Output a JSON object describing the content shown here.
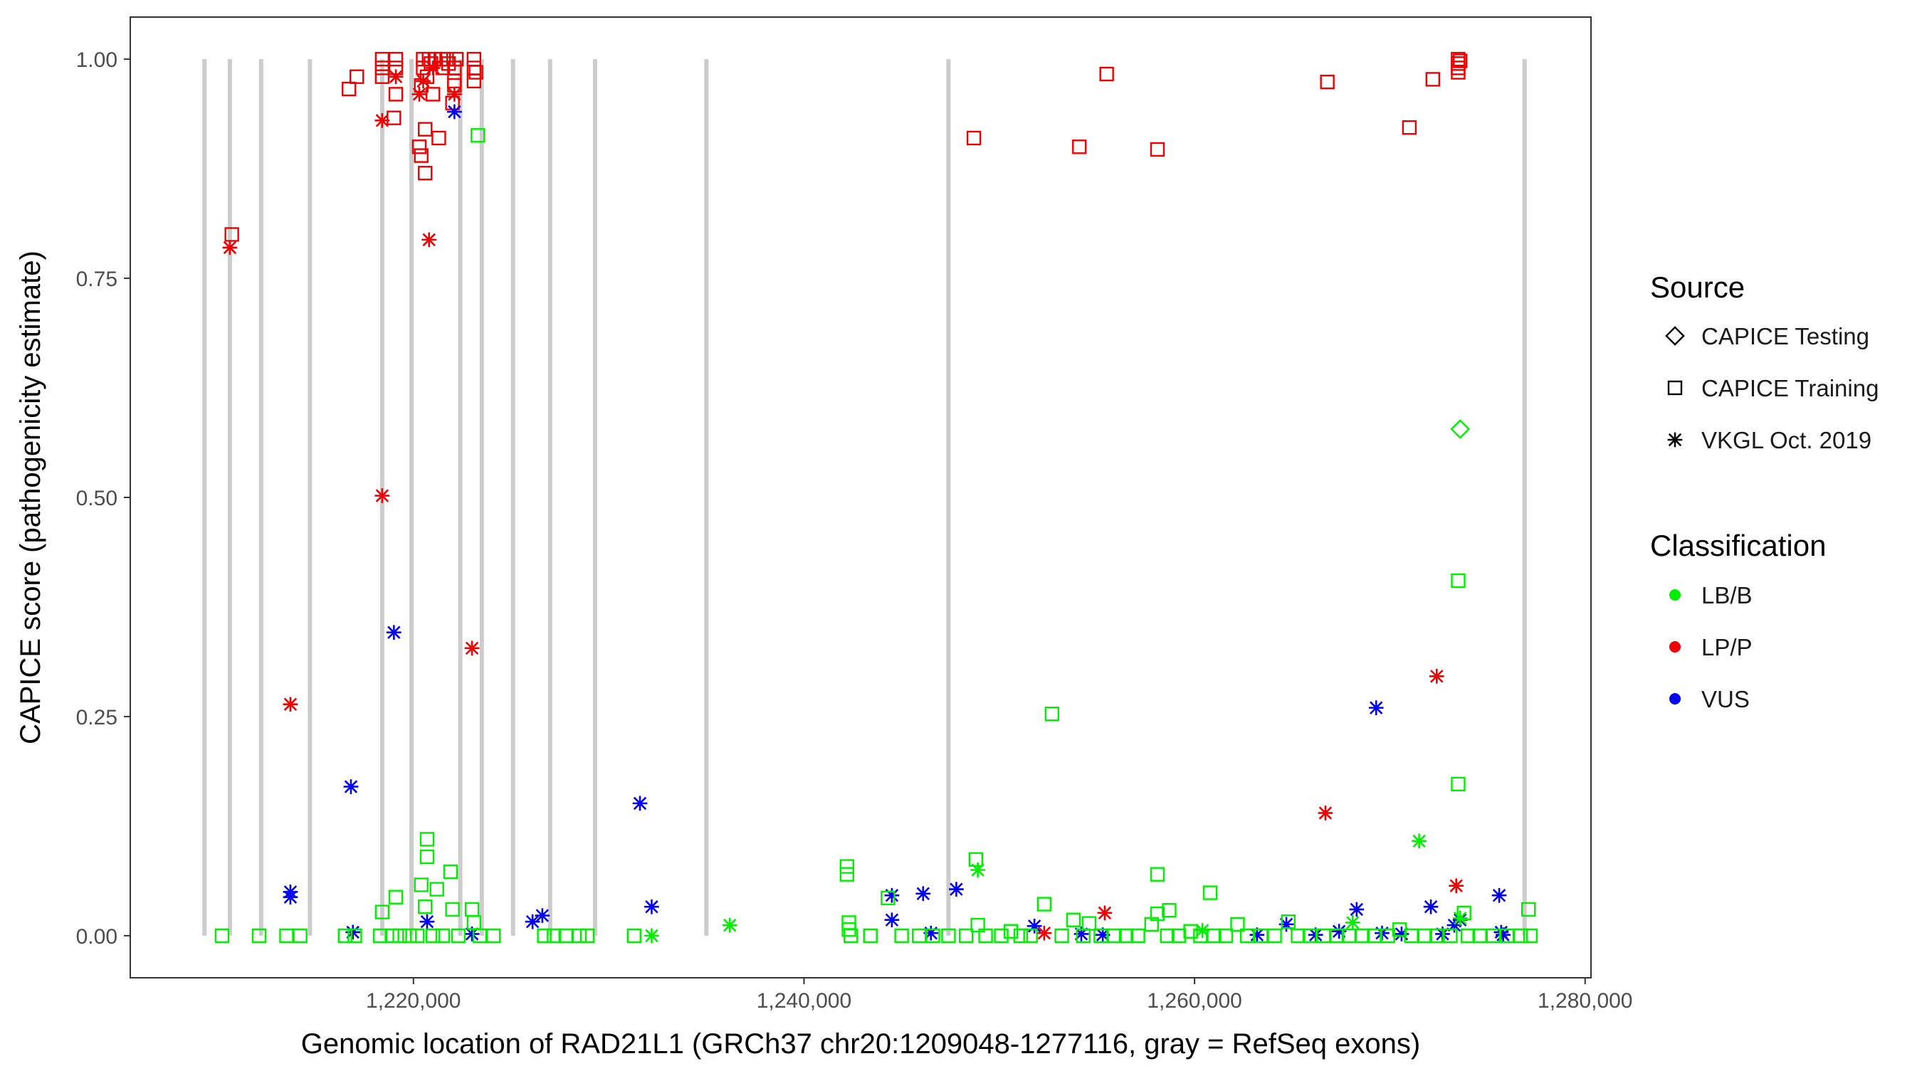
{
  "chart_data": {
    "type": "scatter",
    "xlabel": "Genomic location of RAD21L1 (GRCh37 chr20:1209048-1277116, gray = RefSeq exons)",
    "ylabel": "CAPICE score (pathogenicity estimate)",
    "xlim": [
      1205500,
      1280300
    ],
    "ylim": [
      -0.048,
      1.048
    ],
    "x_ticks": [
      1220000,
      1240000,
      1260000,
      1280000
    ],
    "x_tick_labels": [
      "1,220,000",
      "1,240,000",
      "1,260,000",
      "1,280,000"
    ],
    "y_ticks": [
      0,
      0.25,
      0.5,
      0.75,
      1
    ],
    "y_tick_labels": [
      "0.00",
      "0.25",
      "0.50",
      "0.75",
      "1.00"
    ],
    "exons": [
      1209300,
      1210600,
      1212200,
      1214700,
      1218400,
      1219900,
      1222400,
      1223500,
      1225100,
      1227000,
      1229300,
      1235000,
      1247400,
      1276900
    ],
    "colors": {
      "LB/B": "#00ee00",
      "LP/P": "#ee0000",
      "VUS": "#0000ee",
      "exon": "#cccccc"
    },
    "legend": {
      "source_title": "Source",
      "source_items": [
        {
          "label": "CAPICE Testing",
          "shape": "diamond"
        },
        {
          "label": "CAPICE Training",
          "shape": "square"
        },
        {
          "label": "VKGL Oct. 2019",
          "shape": "asterisk"
        }
      ],
      "class_title": "Classification",
      "class_items": [
        {
          "label": "LB/B",
          "color": "#00ee00"
        },
        {
          "label": "LP/P",
          "color": "#ee0000"
        },
        {
          "label": "VUS",
          "color": "#0000ee"
        }
      ]
    },
    "series": [
      {
        "name": "CAPICE Training LP/P",
        "shape": "square",
        "color": "#ee0000",
        "points": [
          [
            1210700,
            0.8
          ],
          [
            1216700,
            0.966
          ],
          [
            1217100,
            0.98
          ],
          [
            1218400,
            1.0
          ],
          [
            1218400,
            0.99
          ],
          [
            1218400,
            0.98
          ],
          [
            1219000,
            0.933
          ],
          [
            1219100,
            0.96
          ],
          [
            1219100,
            1.0
          ],
          [
            1219100,
            0.99
          ],
          [
            1220300,
            0.9
          ],
          [
            1220400,
            0.89
          ],
          [
            1220400,
            0.97
          ],
          [
            1220600,
            0.92
          ],
          [
            1220600,
            0.87
          ],
          [
            1220500,
            1.0
          ],
          [
            1220500,
            0.99
          ],
          [
            1220700,
            0.98
          ],
          [
            1220800,
            1.0
          ],
          [
            1220900,
            0.995
          ],
          [
            1221000,
            0.96
          ],
          [
            1221100,
            1.0
          ],
          [
            1221300,
            0.91
          ],
          [
            1221400,
            1.0
          ],
          [
            1221500,
            0.99
          ],
          [
            1221700,
            1.0
          ],
          [
            1221800,
            0.995
          ],
          [
            1222000,
            0.95
          ],
          [
            1222100,
            0.97
          ],
          [
            1222100,
            0.99
          ],
          [
            1222200,
            1.0
          ],
          [
            1222100,
            0.975
          ],
          [
            1223100,
            1.0
          ],
          [
            1223100,
            0.99
          ],
          [
            1223100,
            0.975
          ],
          [
            1223200,
            0.985
          ],
          [
            1248700,
            0.91
          ],
          [
            1254100,
            0.9
          ],
          [
            1255500,
            0.983
          ],
          [
            1258100,
            0.897
          ],
          [
            1266800,
            0.974
          ],
          [
            1271000,
            0.922
          ],
          [
            1272200,
            0.977
          ],
          [
            1273500,
            1.0
          ],
          [
            1273500,
            0.995
          ],
          [
            1273500,
            0.99
          ],
          [
            1273500,
            0.985
          ],
          [
            1273600,
            0.998
          ]
        ]
      },
      {
        "name": "VKGL LP/P",
        "shape": "asterisk",
        "color": "#ee0000",
        "points": [
          [
            1210600,
            0.785
          ],
          [
            1213700,
            0.264
          ],
          [
            1218400,
            0.93
          ],
          [
            1218400,
            0.502
          ],
          [
            1219100,
            0.98
          ],
          [
            1220300,
            0.96
          ],
          [
            1220500,
            0.975
          ],
          [
            1220800,
            0.794
          ],
          [
            1221000,
            0.99
          ],
          [
            1222100,
            0.96
          ],
          [
            1223000,
            0.328
          ],
          [
            1252300,
            0.003
          ],
          [
            1255400,
            0.026
          ],
          [
            1266700,
            0.14
          ],
          [
            1272400,
            0.296
          ],
          [
            1273400,
            0.057
          ]
        ]
      },
      {
        "name": "VKGL VUS",
        "shape": "asterisk",
        "color": "#0000ee",
        "points": [
          [
            1213700,
            0.05
          ],
          [
            1213700,
            0.044
          ],
          [
            1216800,
            0.17
          ],
          [
            1216900,
            0.004
          ],
          [
            1219000,
            0.346
          ],
          [
            1220700,
            0.016
          ],
          [
            1222100,
            0.94
          ],
          [
            1223000,
            0.002
          ],
          [
            1226100,
            0.016
          ],
          [
            1226600,
            0.023
          ],
          [
            1231600,
            0.151
          ],
          [
            1232200,
            0.033
          ],
          [
            1244500,
            0.046
          ],
          [
            1244500,
            0.018
          ],
          [
            1246100,
            0.048
          ],
          [
            1246500,
            0.003
          ],
          [
            1247800,
            0.053
          ],
          [
            1251800,
            0.011
          ],
          [
            1254200,
            0.002
          ],
          [
            1255300,
            0.001
          ],
          [
            1263200,
            0.001
          ],
          [
            1264700,
            0.013
          ],
          [
            1266200,
            0.001
          ],
          [
            1267400,
            0.005
          ],
          [
            1268300,
            0.03
          ],
          [
            1269300,
            0.26
          ],
          [
            1269600,
            0.003
          ],
          [
            1270600,
            0.002
          ],
          [
            1272100,
            0.033
          ],
          [
            1272700,
            0.002
          ],
          [
            1273300,
            0.012
          ],
          [
            1273600,
            0.018
          ],
          [
            1275600,
            0.046
          ],
          [
            1275700,
            0.004
          ],
          [
            1275800,
            0.001
          ]
        ]
      },
      {
        "name": "VKGL LB/B",
        "shape": "asterisk",
        "color": "#00ee00",
        "points": [
          [
            1232200,
            0.0
          ],
          [
            1236200,
            0.012
          ],
          [
            1248900,
            0.075
          ],
          [
            1260400,
            0.006
          ],
          [
            1268100,
            0.015
          ],
          [
            1271500,
            0.108
          ],
          [
            1273600,
            0.02
          ]
        ]
      },
      {
        "name": "CAPICE Testing LB/B",
        "shape": "diamond",
        "color": "#00ee00",
        "points": [
          [
            1273600,
            0.578
          ]
        ]
      },
      {
        "name": "CAPICE Training LB/B",
        "shape": "square",
        "color": "#00ee00",
        "points": [
          [
            1210200,
            0.0
          ],
          [
            1212100,
            0.0
          ],
          [
            1213500,
            0.0
          ],
          [
            1214200,
            0.0
          ],
          [
            1216500,
            0.0
          ],
          [
            1217000,
            0.0
          ],
          [
            1218300,
            0.0
          ],
          [
            1218400,
            0.027
          ],
          [
            1218900,
            0.0
          ],
          [
            1219100,
            0.044
          ],
          [
            1219300,
            0.0
          ],
          [
            1219800,
            0.0
          ],
          [
            1220200,
            0.0
          ],
          [
            1220400,
            0.058
          ],
          [
            1220600,
            0.033
          ],
          [
            1220700,
            0.11
          ],
          [
            1220700,
            0.09
          ],
          [
            1221000,
            0.0
          ],
          [
            1221200,
            0.053
          ],
          [
            1221500,
            0.0
          ],
          [
            1221900,
            0.073
          ],
          [
            1222000,
            0.03
          ],
          [
            1222300,
            0.0
          ],
          [
            1223000,
            0.03
          ],
          [
            1223100,
            0.015
          ],
          [
            1223300,
            0.913
          ],
          [
            1223400,
            0.0
          ],
          [
            1224100,
            0.0
          ],
          [
            1226700,
            0.0
          ],
          [
            1227200,
            0.0
          ],
          [
            1227800,
            0.0
          ],
          [
            1228500,
            0.0
          ],
          [
            1228900,
            0.0
          ],
          [
            1231300,
            0.0
          ],
          [
            1242200,
            0.079
          ],
          [
            1242200,
            0.07
          ],
          [
            1242300,
            0.015
          ],
          [
            1242300,
            0.007
          ],
          [
            1242400,
            0.0
          ],
          [
            1243400,
            0.0
          ],
          [
            1244300,
            0.043
          ],
          [
            1245000,
            0.0
          ],
          [
            1245900,
            0.0
          ],
          [
            1246600,
            0.0
          ],
          [
            1247400,
            0.0
          ],
          [
            1248300,
            0.0
          ],
          [
            1248800,
            0.087
          ],
          [
            1248900,
            0.012
          ],
          [
            1249300,
            0.0
          ],
          [
            1250100,
            0.0
          ],
          [
            1250600,
            0.005
          ],
          [
            1251100,
            0.0
          ],
          [
            1251600,
            0.0
          ],
          [
            1252300,
            0.036
          ],
          [
            1252700,
            0.253
          ],
          [
            1253200,
            0.0
          ],
          [
            1253800,
            0.018
          ],
          [
            1254300,
            0.0
          ],
          [
            1254600,
            0.014
          ],
          [
            1255200,
            0.0
          ],
          [
            1255900,
            0.0
          ],
          [
            1256500,
            0.0
          ],
          [
            1257100,
            0.0
          ],
          [
            1257800,
            0.013
          ],
          [
            1258100,
            0.07
          ],
          [
            1258100,
            0.025
          ],
          [
            1258600,
            0.0
          ],
          [
            1258700,
            0.029
          ],
          [
            1259200,
            0.0
          ],
          [
            1259800,
            0.005
          ],
          [
            1260300,
            0.0
          ],
          [
            1260800,
            0.049
          ],
          [
            1261000,
            0.0
          ],
          [
            1261600,
            0.0
          ],
          [
            1262200,
            0.013
          ],
          [
            1262700,
            0.0
          ],
          [
            1263400,
            0.0
          ],
          [
            1264100,
            0.0
          ],
          [
            1264800,
            0.016
          ],
          [
            1265300,
            0.0
          ],
          [
            1265900,
            0.0
          ],
          [
            1266600,
            0.0
          ],
          [
            1267300,
            0.0
          ],
          [
            1267900,
            0.0
          ],
          [
            1268600,
            0.0
          ],
          [
            1269200,
            0.0
          ],
          [
            1269900,
            0.0
          ],
          [
            1270500,
            0.007
          ],
          [
            1271100,
            0.0
          ],
          [
            1271800,
            0.0
          ],
          [
            1272400,
            0.0
          ],
          [
            1273100,
            0.0
          ],
          [
            1273500,
            0.405
          ],
          [
            1273500,
            0.173
          ],
          [
            1273800,
            0.026
          ],
          [
            1274000,
            0.0
          ],
          [
            1274600,
            0.0
          ],
          [
            1275300,
            0.0
          ],
          [
            1276000,
            0.0
          ],
          [
            1276700,
            0.0
          ],
          [
            1277100,
            0.03
          ],
          [
            1277200,
            0.0
          ]
        ]
      }
    ]
  }
}
